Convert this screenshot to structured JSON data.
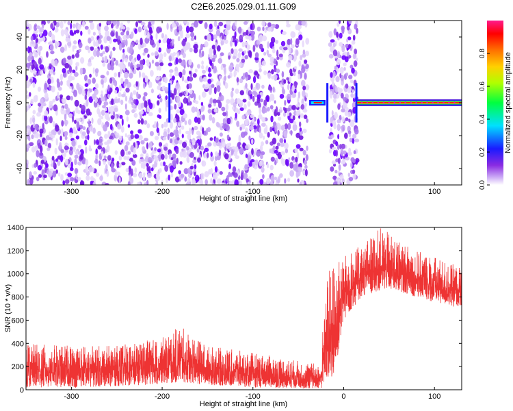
{
  "figure_title": "C2E6.2025.029.01.11.G09",
  "chart_data": [
    {
      "type": "heatmap",
      "title": "",
      "xlabel": "Height of straight line (km)",
      "ylabel": "Frequency (Hz)",
      "xlim": [
        -350,
        130
      ],
      "ylim": [
        -50,
        50
      ],
      "xticks": [
        -300,
        -200,
        -100,
        0,
        100
      ],
      "xtick_labels": [
        "-300",
        "-200",
        "-100",
        "",
        "100"
      ],
      "yticks": [
        -40,
        -20,
        0,
        20,
        40
      ],
      "ytick_labels": [
        "-40",
        "-20",
        "0",
        "20",
        "40"
      ],
      "colorbar": {
        "label": "Normalized spectral amplitude",
        "range": [
          0,
          1
        ],
        "ticks": [
          0.0,
          0.2,
          0.4,
          0.6,
          0.8
        ],
        "tick_labels": [
          "0.0",
          "0.2",
          "0.4",
          "0.6",
          "0.8"
        ],
        "colormap": [
          "#ffffff",
          "#8a2be2",
          "#0000ff",
          "#00ffff",
          "#00ff00",
          "#ffff00",
          "#ff8000",
          "#ff0000",
          "#ff0080"
        ]
      },
      "regions": [
        {
          "x": [
            -350,
            -40
          ],
          "pattern": "broadband noise",
          "level": 0.15
        },
        {
          "x": [
            -40,
            -20
          ],
          "pattern": "weak tone near 0 Hz",
          "freq": 0,
          "level": 0.5
        },
        {
          "x": [
            -20,
            15
          ],
          "pattern": "broadband noise with gap",
          "level": 0.15
        },
        {
          "x": [
            15,
            130
          ],
          "pattern": "strong tone at 0 Hz",
          "freq": 0,
          "level": 1.0
        }
      ],
      "blank_x": [
        -40,
        -15
      ]
    },
    {
      "type": "line",
      "title": "",
      "xlabel": "Height of straight line (km)",
      "ylabel": "SNR (10 * v/v)",
      "xlim": [
        -350,
        130
      ],
      "ylim": [
        0,
        1400
      ],
      "xticks": [
        -300,
        -200,
        -100,
        0,
        100
      ],
      "xtick_labels": [
        "-300",
        "-200",
        "-100",
        "0",
        "100"
      ],
      "yticks": [
        0,
        200,
        400,
        600,
        800,
        1000,
        1200,
        1400
      ],
      "ytick_labels": [
        "0",
        "200",
        "400",
        "600",
        "800",
        "1000",
        "1200",
        "1400"
      ],
      "color": "#ee3333",
      "series": [
        {
          "envelope_x": [
            -350,
            -300,
            -250,
            -200,
            -180,
            -150,
            -100,
            -50,
            -25,
            -20,
            -10,
            0,
            20,
            40,
            60,
            80,
            100,
            130
          ],
          "envelope_low": [
            20,
            20,
            30,
            50,
            60,
            40,
            20,
            10,
            10,
            50,
            100,
            600,
            800,
            850,
            850,
            800,
            750,
            700
          ],
          "envelope_high": [
            400,
            380,
            380,
            450,
            550,
            380,
            320,
            250,
            220,
            1000,
            1100,
            1150,
            1250,
            1400,
            1300,
            1200,
            1150,
            1050
          ]
        }
      ]
    }
  ]
}
